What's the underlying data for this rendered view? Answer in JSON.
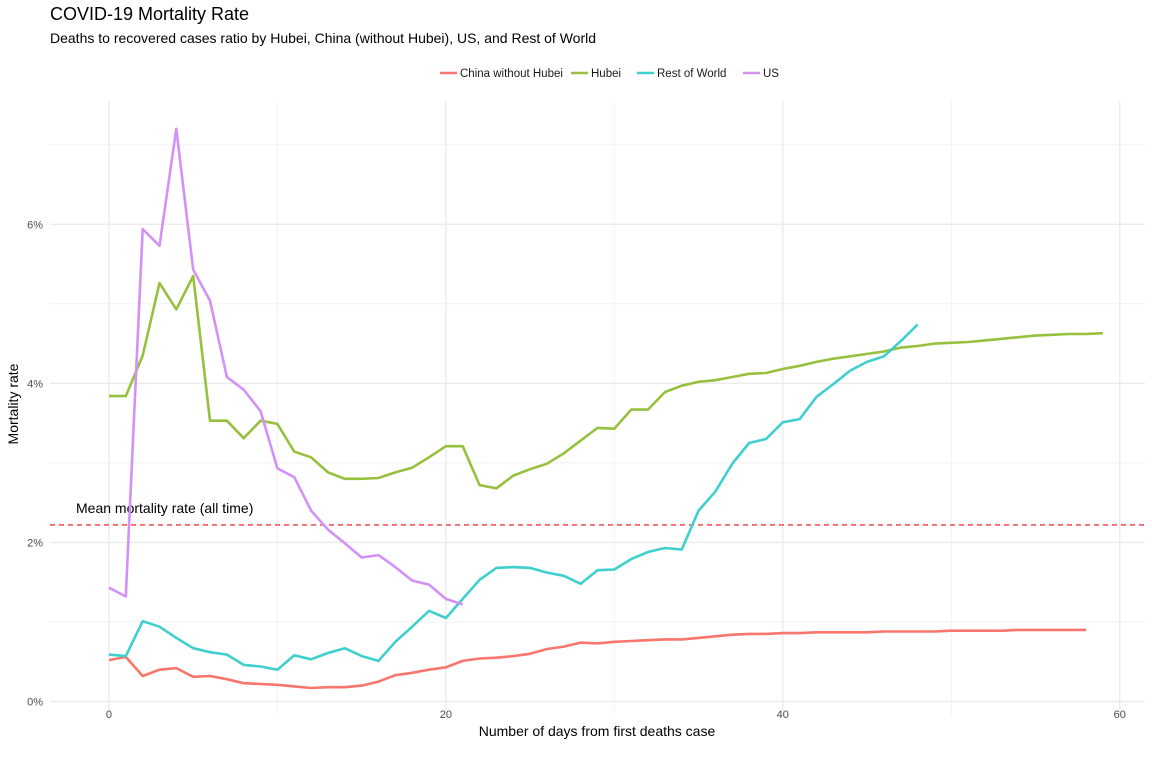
{
  "chart_data": {
    "type": "line",
    "title": "COVID-19 Mortality Rate",
    "subtitle": "Deaths to recovered cases ratio by Hubei, China (without Hubei), US, and Rest of World",
    "xlabel": "Number of days from first deaths case",
    "ylabel": "Mortality rate",
    "xlim": [
      -3.5,
      61.5
    ],
    "ylim": [
      -0.17,
      7.55
    ],
    "x_ticks": [
      0,
      20,
      40,
      60
    ],
    "x_tick_labels": [
      "0",
      "20",
      "40",
      "60"
    ],
    "y_ticks": [
      0,
      2,
      4,
      6
    ],
    "y_tick_labels": [
      "0%",
      "2%",
      "4%",
      "6%"
    ],
    "grid": true,
    "legend_position": "top",
    "mean_line": {
      "value": 2.22,
      "label": "Mean mortality rate (all time)",
      "color": "#f8353a",
      "style": "dashed"
    },
    "series": [
      {
        "name": "China without Hubei",
        "color": "#f8766d",
        "x": [
          0,
          1,
          2,
          3,
          4,
          5,
          6,
          7,
          8,
          9,
          10,
          11,
          12,
          13,
          14,
          15,
          16,
          17,
          18,
          19,
          20,
          21,
          22,
          23,
          24,
          25,
          26,
          27,
          28,
          29,
          30,
          31,
          32,
          33,
          34,
          35,
          36,
          37,
          38,
          39,
          40,
          41,
          42,
          43,
          44,
          45,
          46,
          47,
          48,
          49,
          50,
          51,
          52,
          53,
          54,
          55,
          56,
          57,
          58
        ],
        "y": [
          0.52,
          0.56,
          0.32,
          0.4,
          0.42,
          0.31,
          0.32,
          0.28,
          0.23,
          0.22,
          0.21,
          0.19,
          0.17,
          0.18,
          0.18,
          0.2,
          0.25,
          0.33,
          0.36,
          0.4,
          0.43,
          0.51,
          0.54,
          0.55,
          0.57,
          0.6,
          0.66,
          0.69,
          0.74,
          0.73,
          0.75,
          0.76,
          0.77,
          0.78,
          0.78,
          0.8,
          0.82,
          0.84,
          0.85,
          0.85,
          0.86,
          0.86,
          0.87,
          0.87,
          0.87,
          0.87,
          0.88,
          0.88,
          0.88,
          0.88,
          0.89,
          0.89,
          0.89,
          0.89,
          0.9,
          0.9,
          0.9,
          0.9,
          0.9
        ]
      },
      {
        "name": "Hubei",
        "color": "#96c03e",
        "x": [
          0,
          1,
          2,
          3,
          4,
          5,
          6,
          7,
          8,
          9,
          10,
          11,
          12,
          13,
          14,
          15,
          16,
          17,
          18,
          19,
          20,
          21,
          22,
          23,
          24,
          25,
          26,
          27,
          28,
          29,
          30,
          31,
          32,
          33,
          34,
          35,
          36,
          37,
          38,
          39,
          40,
          41,
          42,
          43,
          44,
          45,
          46,
          47,
          48,
          49,
          50,
          51,
          52,
          53,
          54,
          55,
          56,
          57,
          58,
          59
        ],
        "y": [
          3.84,
          3.84,
          4.35,
          5.26,
          4.93,
          5.35,
          3.53,
          3.53,
          3.31,
          3.53,
          3.49,
          3.14,
          3.07,
          2.88,
          2.8,
          2.8,
          2.81,
          2.88,
          2.94,
          3.07,
          3.21,
          3.21,
          2.72,
          2.68,
          2.84,
          2.92,
          2.99,
          3.12,
          3.28,
          3.44,
          3.43,
          3.67,
          3.67,
          3.89,
          3.97,
          4.02,
          4.04,
          4.08,
          4.12,
          4.13,
          4.18,
          4.22,
          4.27,
          4.31,
          4.34,
          4.37,
          4.4,
          4.45,
          4.47,
          4.5,
          4.51,
          4.52,
          4.54,
          4.56,
          4.58,
          4.6,
          4.61,
          4.62,
          4.62,
          4.63
        ]
      },
      {
        "name": "Rest of World",
        "color": "#3fcfcf",
        "x": [
          0,
          1,
          2,
          3,
          4,
          5,
          6,
          7,
          8,
          9,
          10,
          11,
          12,
          13,
          14,
          15,
          16,
          17,
          18,
          19,
          20,
          21,
          22,
          23,
          24,
          25,
          26,
          27,
          28,
          29,
          30,
          31,
          32,
          33,
          34,
          35,
          36,
          37,
          38,
          39,
          40,
          41,
          42,
          43,
          44,
          45,
          46,
          47,
          48
        ],
        "y": [
          0.59,
          0.57,
          1.01,
          0.94,
          0.8,
          0.67,
          0.62,
          0.59,
          0.46,
          0.44,
          0.4,
          0.58,
          0.53,
          0.61,
          0.67,
          0.57,
          0.51,
          0.75,
          0.94,
          1.14,
          1.05,
          1.29,
          1.53,
          1.68,
          1.69,
          1.68,
          1.62,
          1.58,
          1.48,
          1.65,
          1.66,
          1.79,
          1.88,
          1.93,
          1.91,
          2.4,
          2.64,
          2.99,
          3.25,
          3.3,
          3.51,
          3.55,
          3.83,
          3.99,
          4.16,
          4.27,
          4.34,
          4.53,
          4.74
        ]
      },
      {
        "name": "US",
        "color": "#d391f8",
        "x": [
          0,
          1,
          2,
          3,
          4,
          5,
          6,
          7,
          8,
          9,
          10,
          11,
          12,
          13,
          14,
          15,
          16,
          17,
          18,
          19,
          20,
          21
        ],
        "y": [
          1.43,
          1.32,
          5.94,
          5.73,
          7.2,
          5.43,
          5.04,
          4.08,
          3.92,
          3.65,
          2.93,
          2.82,
          2.4,
          2.16,
          1.99,
          1.81,
          1.84,
          1.69,
          1.52,
          1.47,
          1.29,
          1.22
        ]
      }
    ]
  }
}
